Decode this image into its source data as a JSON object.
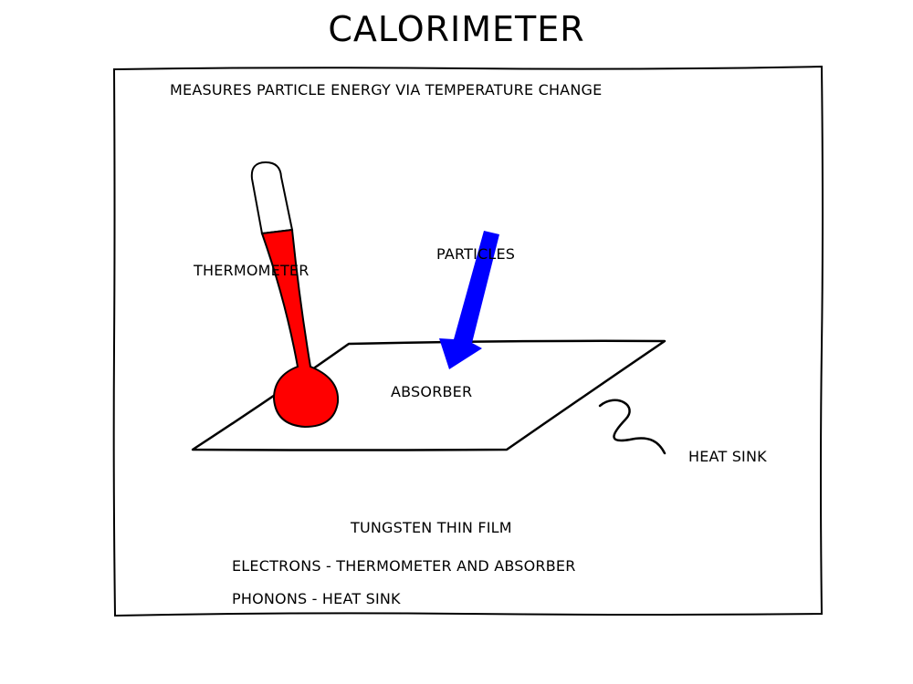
{
  "title": "CALORIMETER",
  "subtitle": "MEASURES PARTICLE ENERGY VIA TEMPERATURE CHANGE",
  "labels": {
    "thermometer": "THERMOMETER",
    "particles": "PARTICLES",
    "absorber": "ABSORBER",
    "heat_sink": "HEAT SINK"
  },
  "notes": [
    "TUNGSTEN THIN FILM",
    "ELECTRONS - THERMOMETER AND ABSORBER",
    "PHONONS - HEAT SINK"
  ],
  "colors": {
    "thermometer_fill": "#ff0000",
    "particle_arrow": "#0000ff",
    "outline": "#000000",
    "background": "#ffffff"
  }
}
